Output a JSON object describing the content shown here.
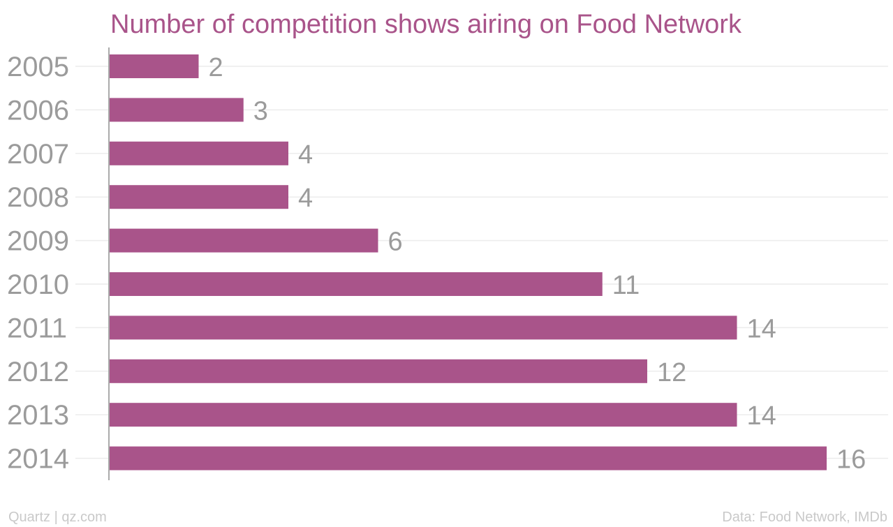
{
  "chart_data": {
    "type": "bar",
    "orientation": "horizontal",
    "title": "Number of competition shows airing on Food Network",
    "categories": [
      "2005",
      "2006",
      "2007",
      "2008",
      "2009",
      "2010",
      "2011",
      "2012",
      "2013",
      "2014"
    ],
    "values": [
      2,
      3,
      4,
      4,
      6,
      11,
      14,
      12,
      14,
      16
    ],
    "xlim": [
      0,
      16
    ],
    "data_labels": true,
    "grid": true,
    "bar_color": "#a9548a"
  },
  "footer": {
    "credit": "Quartz | qz.com",
    "source": "Data: Food Network, IMDb"
  }
}
